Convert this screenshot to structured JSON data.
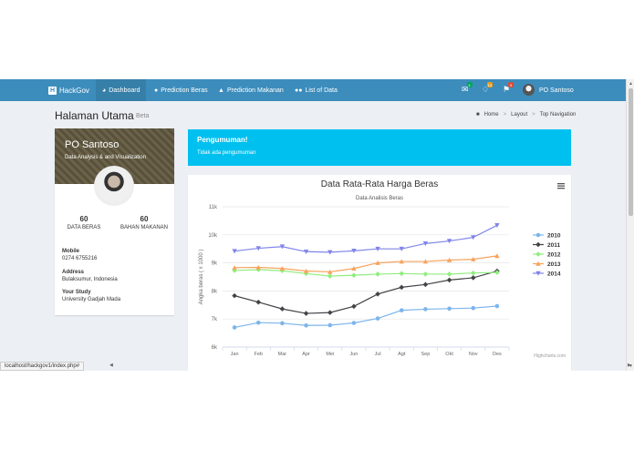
{
  "navbar": {
    "brand_box": "H",
    "brand": "HackGov",
    "items": [
      {
        "label": "Dashboard",
        "icon": "dashboard-icon",
        "active": true
      },
      {
        "label": "Prediction Beras",
        "icon": "map-marker-icon",
        "active": false
      },
      {
        "label": "Prediction Makanan",
        "icon": "area-chart-icon",
        "active": false
      },
      {
        "label": "List of Data",
        "icon": "users-icon",
        "active": false
      }
    ],
    "messages_badge": "4",
    "notifications_badge": "10",
    "tasks_badge": "9",
    "user_name": "PO Santoso"
  },
  "header": {
    "title": "Halaman Utama",
    "subtitle": "Beta",
    "breadcrumb": [
      "Home",
      "Layout",
      "Top Navigation"
    ]
  },
  "profile": {
    "name": "PO Santoso",
    "role": "Data Analysis & and Visualization",
    "stats": [
      {
        "value": "60",
        "label": "DATA BERAS"
      },
      {
        "value": "60",
        "label": "BAHAN MAKANAN"
      }
    ],
    "mobile_label": "Mobile",
    "mobile": "0274 6755216",
    "address_label": "Address",
    "address": "Bulaksumur, Indonesia",
    "study_label": "Your Study",
    "study": "University Gadjah Mada"
  },
  "announcement": {
    "title": "Pengumuman!",
    "text": "Tidak ada pengumuman"
  },
  "chart_data": {
    "type": "line",
    "title": "Data Rata-Rata Harga Beras",
    "subtitle": "Data Analisis Beras",
    "ylabel": "Angka beras ( x 1000 )",
    "credits": "Highcharts.com",
    "ylim": [
      6000,
      11000
    ],
    "yticks": [
      "6k",
      "7k",
      "8k",
      "9k",
      "10k",
      "11k"
    ],
    "categories": [
      "Jan",
      "Feb",
      "Mar",
      "Apr",
      "Mei",
      "Jun",
      "Jul",
      "Agt",
      "Sep",
      "Okt",
      "Nov",
      "Des"
    ],
    "legend_position": "right",
    "grid": true,
    "series": [
      {
        "name": "2010",
        "color": "#7cb5ec",
        "marker": "circle",
        "values": [
          6700,
          6870,
          6850,
          6770,
          6780,
          6860,
          7020,
          7310,
          7350,
          7370,
          7390,
          7460
        ]
      },
      {
        "name": "2011",
        "color": "#434348",
        "marker": "diamond",
        "values": [
          7830,
          7600,
          7360,
          7200,
          7230,
          7450,
          7890,
          8130,
          8230,
          8390,
          8470,
          8710
        ]
      },
      {
        "name": "2012",
        "color": "#90ed7d",
        "marker": "diamond",
        "values": [
          8730,
          8760,
          8720,
          8620,
          8530,
          8560,
          8600,
          8620,
          8600,
          8600,
          8640,
          8660
        ]
      },
      {
        "name": "2013",
        "color": "#f7a35c",
        "marker": "triangle",
        "values": [
          8830,
          8840,
          8800,
          8710,
          8680,
          8800,
          9000,
          9050,
          9050,
          9100,
          9130,
          9250
        ]
      },
      {
        "name": "2014",
        "color": "#8085e9",
        "marker": "triangle-down",
        "values": [
          9420,
          9520,
          9580,
          9400,
          9380,
          9430,
          9500,
          9500,
          9690,
          9780,
          9910,
          10340
        ]
      }
    ]
  },
  "statusbar": {
    "url": "localhost/hackgov1/index.php#"
  }
}
